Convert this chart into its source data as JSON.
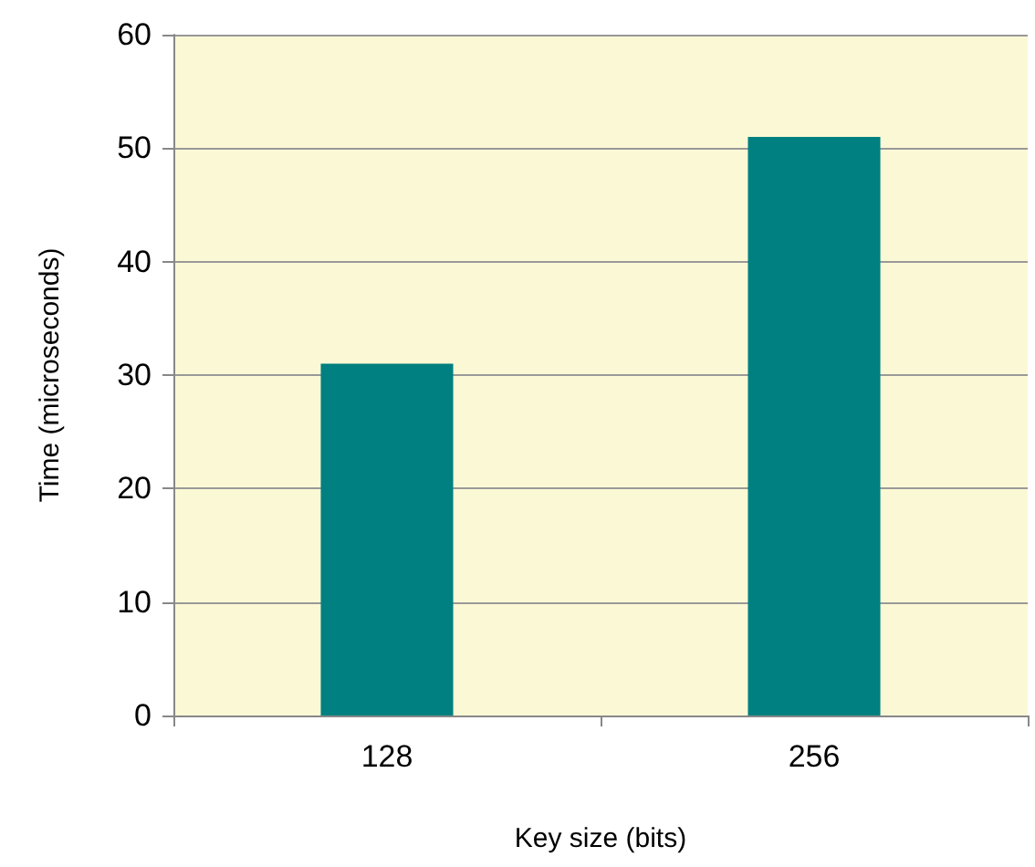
{
  "chart_data": {
    "type": "bar",
    "xlabel": "Key size (bits)",
    "ylabel": "Time (microseconds)",
    "categories": [
      "128",
      "256"
    ],
    "values": [
      31,
      51
    ],
    "color": "#008080",
    "ylim": [
      0,
      60
    ],
    "yticks": [
      0,
      10,
      20,
      30,
      40,
      50,
      60
    ],
    "grid": "y"
  }
}
